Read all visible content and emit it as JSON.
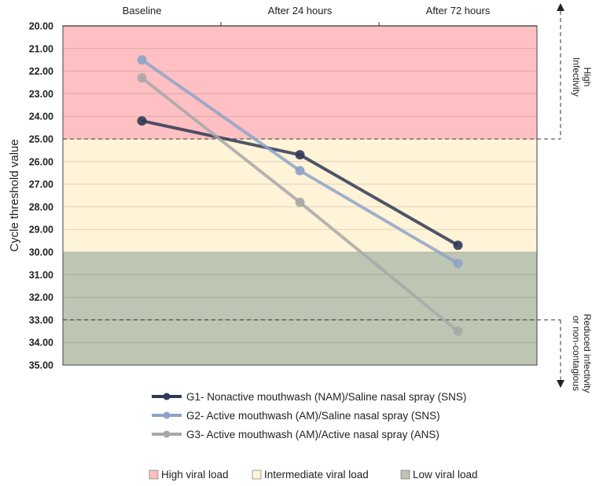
{
  "chart_data": {
    "type": "line",
    "title": "",
    "xlabel": "",
    "ylabel": "Cycle threshold value",
    "categories": [
      "Baseline",
      "After 24 hours",
      "After 72 hours"
    ],
    "ylim": [
      20,
      35
    ],
    "y_inverted": true,
    "y_ticks": [
      "20.00",
      "21.00",
      "22.00",
      "23.00",
      "24.00",
      "25.00",
      "26.00",
      "27.00",
      "28.00",
      "29.00",
      "30.00",
      "31.00",
      "32.00",
      "33.00",
      "34.00",
      "35.00"
    ],
    "grid": true,
    "series": [
      {
        "name": "G1- Nonactive mouthwash (NAM)/Saline nasal spray (SNS)",
        "values": [
          24.2,
          25.7,
          29.7
        ],
        "color": "#2f3a55"
      },
      {
        "name": "G2- Active mouthwash (AM)/Saline nasal spray (SNS)",
        "values": [
          21.5,
          26.4,
          30.5
        ],
        "color": "#8ea3c8"
      },
      {
        "name": "G3- Active mouthwash (AM)/Active nasal spray (ANS)",
        "values": [
          22.3,
          27.8,
          33.5
        ],
        "color": "#a8a8a8"
      }
    ],
    "bands": [
      {
        "name": "High viral load",
        "from": 20,
        "to": 25,
        "color": "#ffc0c3"
      },
      {
        "name": "Intermediate viral load",
        "from": 25,
        "to": 30,
        "color": "#fff3d8"
      },
      {
        "name": "Low viral load",
        "from": 30,
        "to": 35,
        "color": "#bcc6b3"
      }
    ],
    "threshold_lines": [
      25,
      33
    ],
    "annotations": [
      {
        "text": [
          "High",
          "Infectivity"
        ],
        "region": "top"
      },
      {
        "text": [
          "Reduced infectivity",
          "or non-contagious"
        ],
        "region": "bottom"
      }
    ],
    "legend_placement": "bottom"
  }
}
